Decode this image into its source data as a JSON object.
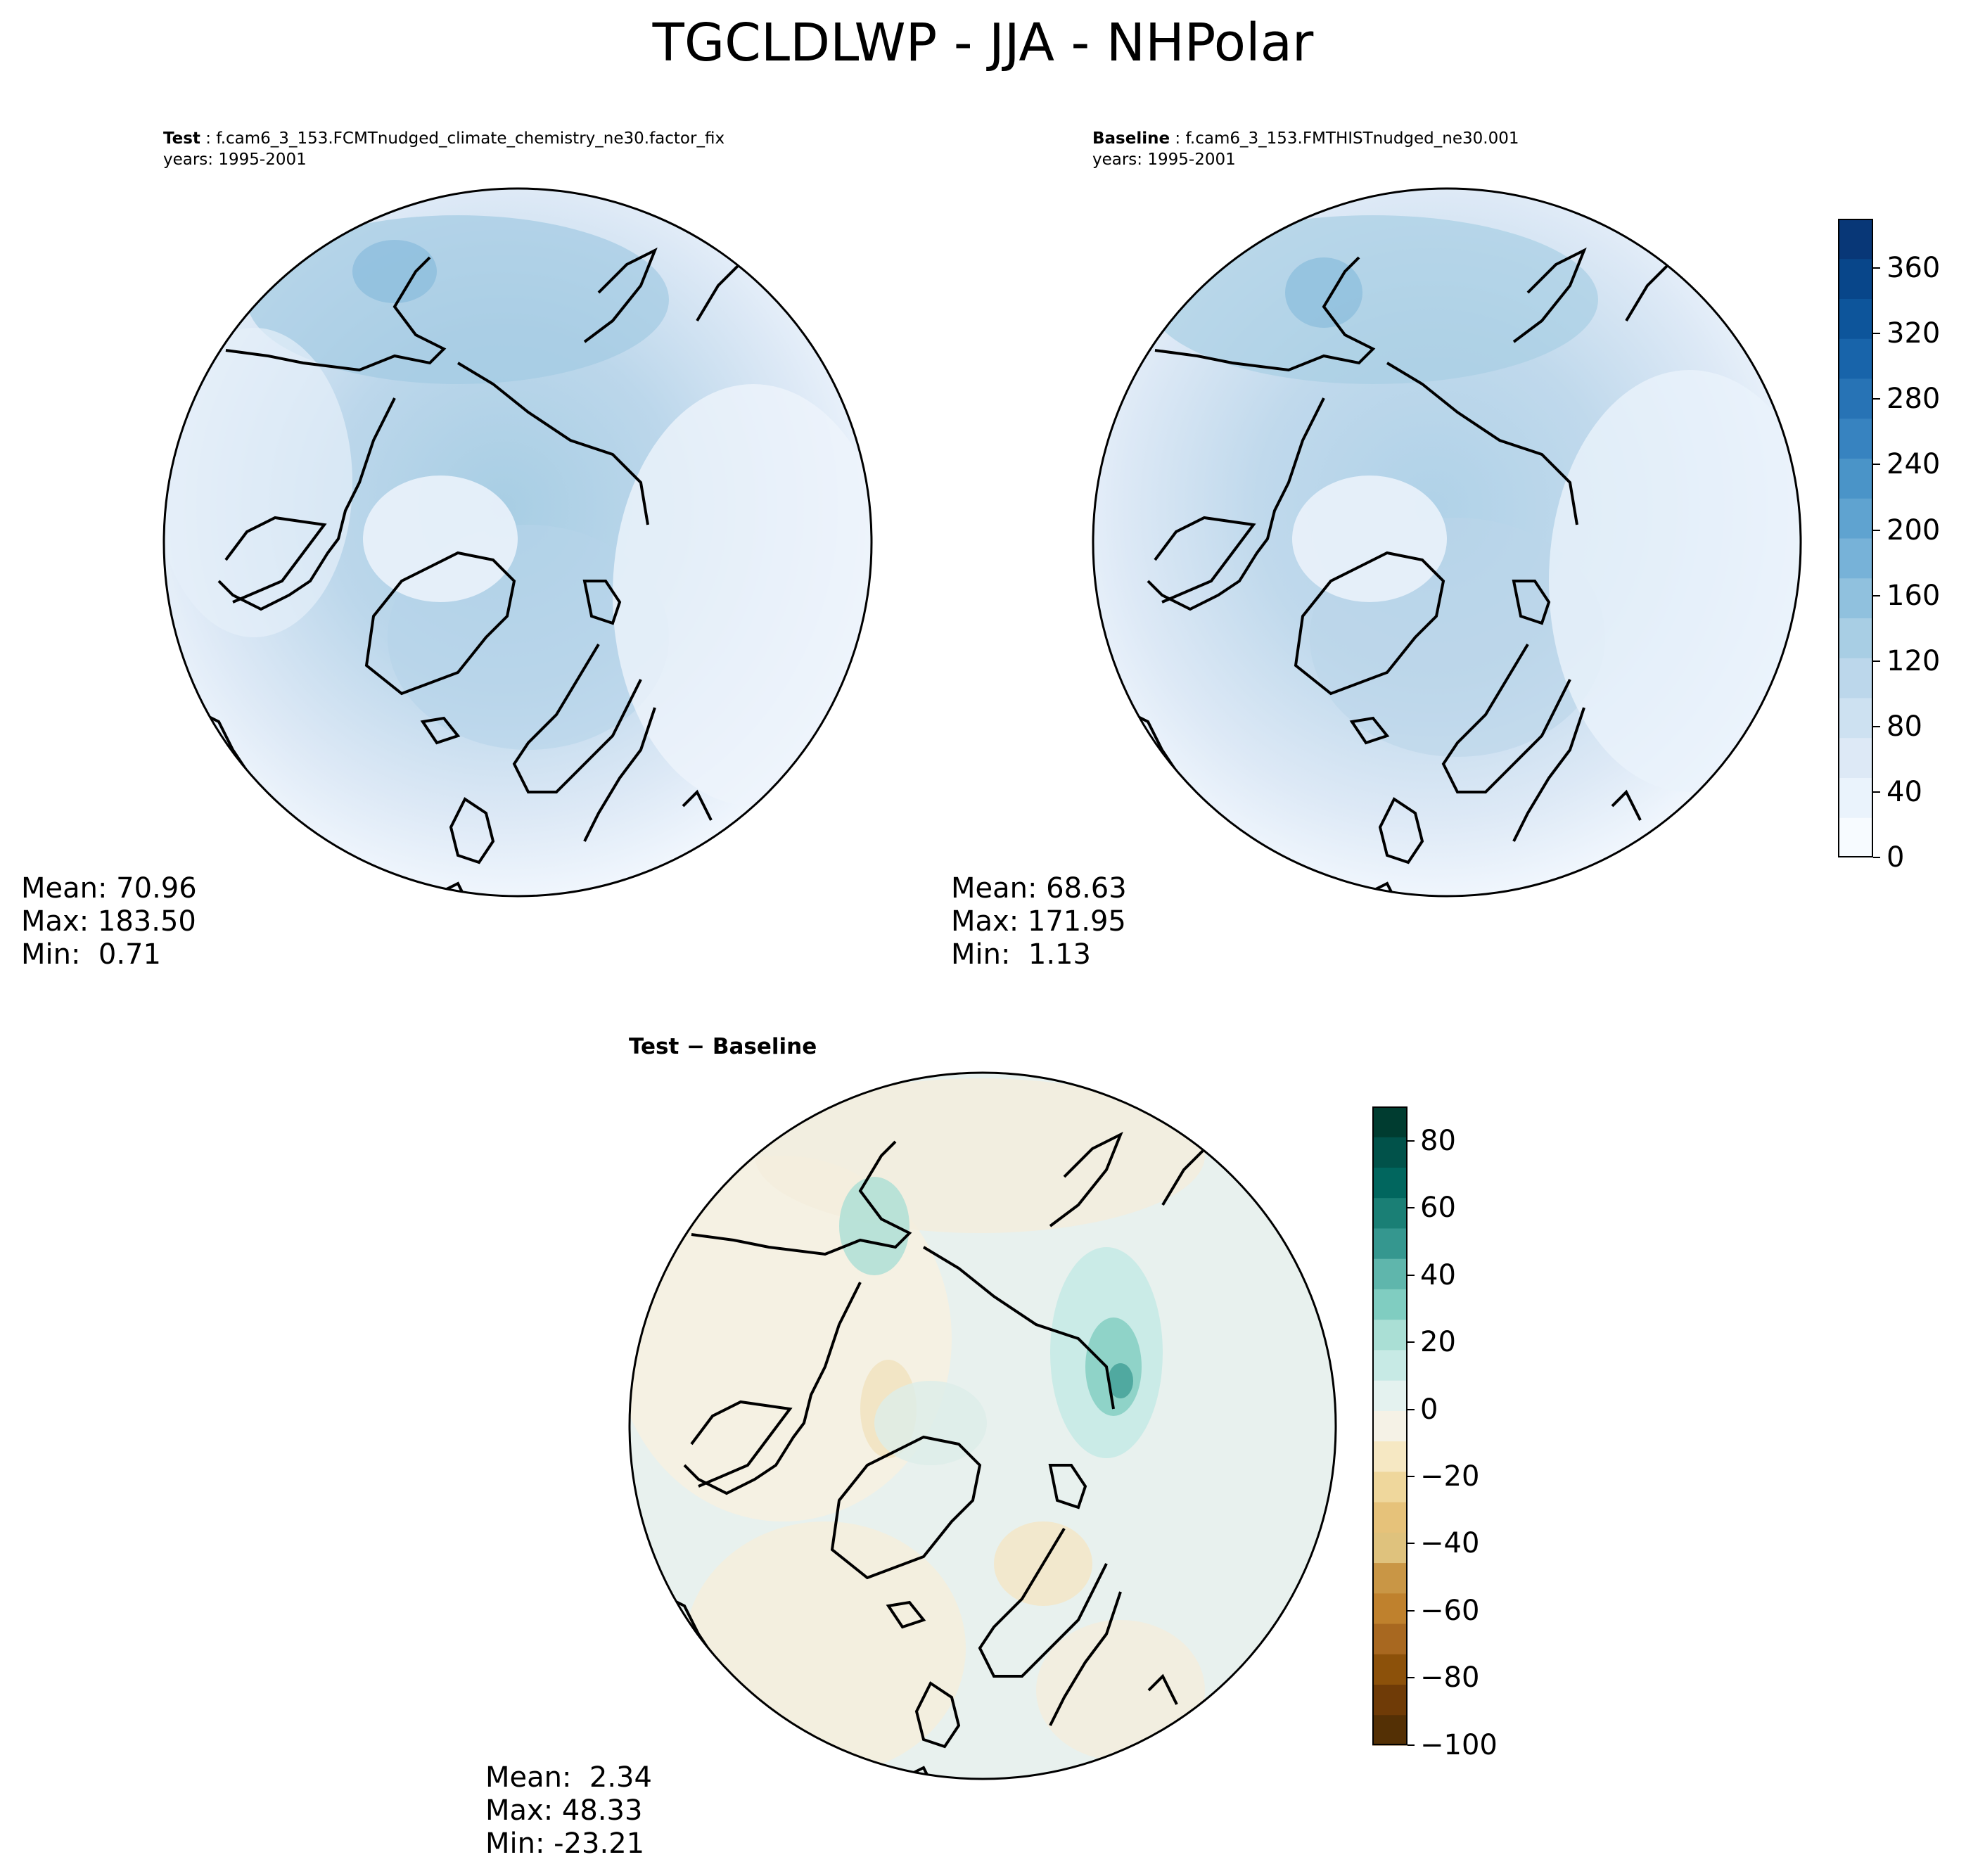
{
  "title": "TGCLDLWP - JJA - NHPolar",
  "panels": [
    {
      "label": "Test",
      "case": "f.cam6_3_153.FCMTnudged_climate_chemistry_ne30.factor_fix",
      "years": "years: 1995-2001",
      "stats": {
        "mean": "Mean: 70.96",
        "max": "Max: 183.50",
        "min": "Min:  0.71"
      }
    },
    {
      "label": "Baseline",
      "case": "f.cam6_3_153.FMTHISTnudged_ne30.001",
      "years": "years: 1995-2001",
      "stats": {
        "mean": "Mean: 68.63",
        "max": "Max: 171.95",
        "min": "Min:  1.13"
      }
    },
    {
      "label": "Test − Baseline",
      "stats": {
        "mean": "Mean:  2.34",
        "max": "Max: 48.33",
        "min": "Min: -23.21"
      }
    }
  ],
  "colorbar_main": {
    "ticks": [
      "0",
      "40",
      "80",
      "120",
      "160",
      "200",
      "240",
      "280",
      "320",
      "360"
    ],
    "colors": [
      "#f7fbff",
      "#eaf3fc",
      "#dde9f6",
      "#cde1f1",
      "#bcd7eb",
      "#a8cee4",
      "#90c1de",
      "#77b2d8",
      "#5fa3d0",
      "#4a94c8",
      "#3783c0",
      "#2773b5",
      "#1864aa",
      "#0d559b",
      "#08468a",
      "#083777"
    ]
  },
  "colorbar_diff": {
    "ticks": [
      "80",
      "60",
      "40",
      "20",
      "0",
      "−20",
      "−40",
      "−60",
      "−80",
      "−100"
    ],
    "colors": [
      "#003c30",
      "#01524a",
      "#01665e",
      "#1a7f75",
      "#35978f",
      "#5fb6ac",
      "#80cdc1",
      "#aadfd5",
      "#c7eae5",
      "#e4f2ef",
      "#f5f2e6",
      "#f6e8c3",
      "#efd79c",
      "#e6c27a",
      "#dfc27d",
      "#c99645",
      "#bf812d",
      "#a86820",
      "#8c510a",
      "#6f3b07",
      "#543005"
    ]
  }
}
